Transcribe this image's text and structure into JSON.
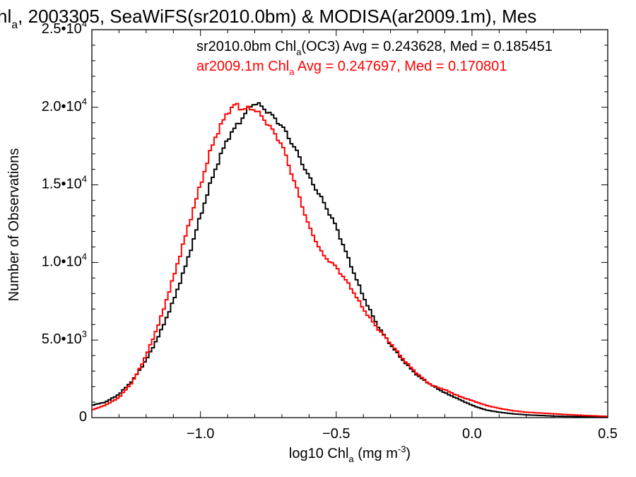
{
  "chart_data": {
    "type": "line",
    "title": {
      "pre": "hl",
      "sub": "a",
      "post": ", 2003305, SeaWiFS(sr2010.0bm) & MODISA(ar2009.1m), Mes"
    },
    "xlabel": {
      "pre": "log10 Chl",
      "sub": "a",
      "mid": " (mg m",
      "sup": "-3",
      "post": ")"
    },
    "ylabel": "Number of Observations",
    "xlim": [
      -1.4,
      0.5
    ],
    "ylim": [
      0,
      25000
    ],
    "x_ticks": [
      {
        "value": -1.0,
        "label": "−1.0"
      },
      {
        "value": -0.5,
        "label": "−0.5"
      },
      {
        "value": 0.0,
        "label": "0.0"
      },
      {
        "value": 0.5,
        "label": "0.5"
      }
    ],
    "y_ticks": [
      {
        "value": 0,
        "mant": "0",
        "exp": ""
      },
      {
        "value": 5000,
        "mant": "5.0•10",
        "exp": "3"
      },
      {
        "value": 10000,
        "mant": "1.0•10",
        "exp": "4"
      },
      {
        "value": 15000,
        "mant": "1.5•10",
        "exp": "4"
      },
      {
        "value": 20000,
        "mant": "2.0•10",
        "exp": "4"
      },
      {
        "value": 25000,
        "mant": "2.5•10",
        "exp": "4"
      }
    ],
    "grid": false,
    "legend_position": "top",
    "series": [
      {
        "key": "sr",
        "color": "#000000",
        "legend": {
          "pre": "sr2010.0bm Chl",
          "sub": "a",
          "post": "(OC3) Avg = 0.243628, Med = 0.185451"
        },
        "points": [
          [
            -1.4,
            800
          ],
          [
            -1.35,
            1000
          ],
          [
            -1.3,
            1500
          ],
          [
            -1.25,
            2400
          ],
          [
            -1.2,
            3700
          ],
          [
            -1.15,
            5400
          ],
          [
            -1.1,
            7500
          ],
          [
            -1.05,
            10000
          ],
          [
            -1.0,
            13000
          ],
          [
            -0.95,
            15800
          ],
          [
            -0.9,
            18000
          ],
          [
            -0.85,
            19200
          ],
          [
            -0.82,
            20000
          ],
          [
            -0.8,
            20300
          ],
          [
            -0.78,
            20100
          ],
          [
            -0.75,
            19700
          ],
          [
            -0.7,
            18800
          ],
          [
            -0.65,
            17300
          ],
          [
            -0.6,
            15500
          ],
          [
            -0.55,
            14000
          ],
          [
            -0.5,
            12300
          ],
          [
            -0.45,
            10000
          ],
          [
            -0.4,
            7800
          ],
          [
            -0.35,
            6000
          ],
          [
            -0.3,
            4700
          ],
          [
            -0.25,
            3600
          ],
          [
            -0.2,
            2700
          ],
          [
            -0.15,
            2100
          ],
          [
            -0.1,
            1600
          ],
          [
            -0.05,
            1200
          ],
          [
            0.0,
            800
          ],
          [
            0.05,
            500
          ],
          [
            0.1,
            350
          ],
          [
            0.15,
            250
          ],
          [
            0.2,
            180
          ],
          [
            0.3,
            100
          ],
          [
            0.4,
            60
          ],
          [
            0.5,
            30
          ]
        ]
      },
      {
        "key": "ar",
        "color": "#ff0000",
        "legend": {
          "pre": "ar2009.1m Chl",
          "sub": "a",
          "post": " Avg = 0.247697, Med = 0.170801"
        },
        "points": [
          [
            -1.4,
            500
          ],
          [
            -1.35,
            800
          ],
          [
            -1.3,
            1300
          ],
          [
            -1.25,
            2300
          ],
          [
            -1.2,
            4000
          ],
          [
            -1.15,
            6200
          ],
          [
            -1.1,
            9000
          ],
          [
            -1.05,
            12000
          ],
          [
            -1.0,
            15000
          ],
          [
            -0.95,
            17900
          ],
          [
            -0.9,
            19700
          ],
          [
            -0.87,
            20200
          ],
          [
            -0.85,
            19900
          ],
          [
            -0.8,
            19900
          ],
          [
            -0.75,
            18900
          ],
          [
            -0.7,
            17600
          ],
          [
            -0.65,
            15000
          ],
          [
            -0.6,
            12300
          ],
          [
            -0.55,
            10500
          ],
          [
            -0.5,
            9700
          ],
          [
            -0.45,
            8500
          ],
          [
            -0.4,
            7000
          ],
          [
            -0.35,
            5800
          ],
          [
            -0.3,
            4800
          ],
          [
            -0.25,
            3700
          ],
          [
            -0.2,
            2800
          ],
          [
            -0.15,
            2100
          ],
          [
            -0.1,
            1800
          ],
          [
            -0.05,
            1400
          ],
          [
            0.0,
            1100
          ],
          [
            0.05,
            800
          ],
          [
            0.1,
            600
          ],
          [
            0.15,
            450
          ],
          [
            0.2,
            350
          ],
          [
            0.3,
            250
          ],
          [
            0.4,
            150
          ],
          [
            0.5,
            80
          ]
        ]
      }
    ]
  }
}
